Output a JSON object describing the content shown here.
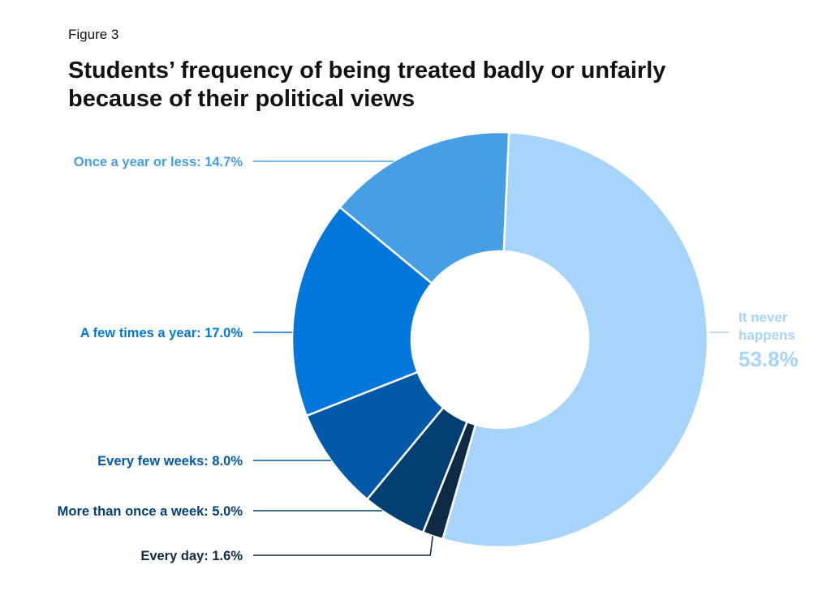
{
  "figure_label": "Figure 3",
  "title": "Students’ frequency of being treated badly or unfairly because of their political views",
  "chart_data": {
    "type": "pie",
    "style": "donut",
    "slices": [
      {
        "label": "It never happens",
        "value": 53.8,
        "display": "53.8%",
        "color": "#a6d4fb"
      },
      {
        "label": "Every day",
        "value": 1.6,
        "display": "Every day: 1.6%",
        "color": "#0e2a45"
      },
      {
        "label": "More than once a week",
        "value": 5.0,
        "display": "More than once a week: 5.0%",
        "color": "#033f72"
      },
      {
        "label": "Every few weeks",
        "value": 8.0,
        "display": "Every few weeks: 8.0%",
        "color": "#0359a7"
      },
      {
        "label": "A few times a year",
        "value": 17.0,
        "display": "A few times a year: 17.0%",
        "color": "#0277db"
      },
      {
        "label": "Once a year or less",
        "value": 14.7,
        "display": "Once a year or less: 14.7%",
        "color": "#469fe4"
      }
    ],
    "big_label": {
      "line1": "It never",
      "line2": "happens",
      "value": "53.8%"
    }
  }
}
